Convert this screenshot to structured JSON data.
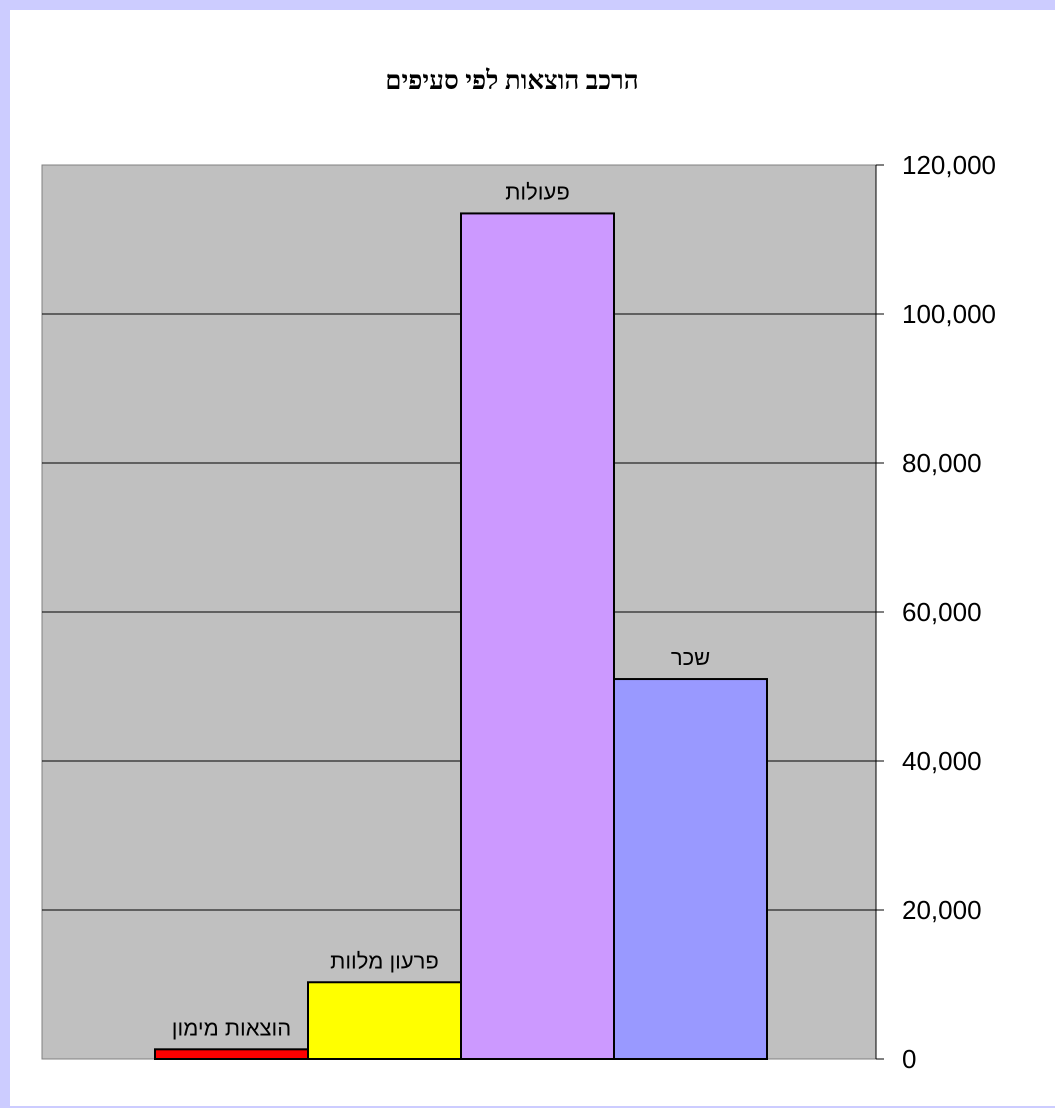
{
  "chart_data": {
    "type": "bar",
    "title": "הרכב הוצאות לפי סעיפים",
    "xlabel": "",
    "ylabel": "",
    "categories": [
      "הוצאות מימון",
      "פרעון מלוות",
      "פעולות",
      "שכר"
    ],
    "values": [
      1300,
      10300,
      113500,
      51000
    ],
    "bar_colors": [
      "#ff0000",
      "#ffff00",
      "#cc99ff",
      "#9999ff"
    ],
    "ylim": [
      0,
      120000
    ],
    "yticks": [
      0,
      20000,
      40000,
      60000,
      80000,
      100000,
      120000
    ],
    "ytick_labels": [
      "0",
      "20,000",
      "40,000",
      "60,000",
      "80,000",
      "100,000",
      "120,000"
    ],
    "y_axis_side": "right",
    "grid": true,
    "plot_background": "#c0c0c0",
    "legend": "none",
    "data_labels": "category names above bars"
  }
}
